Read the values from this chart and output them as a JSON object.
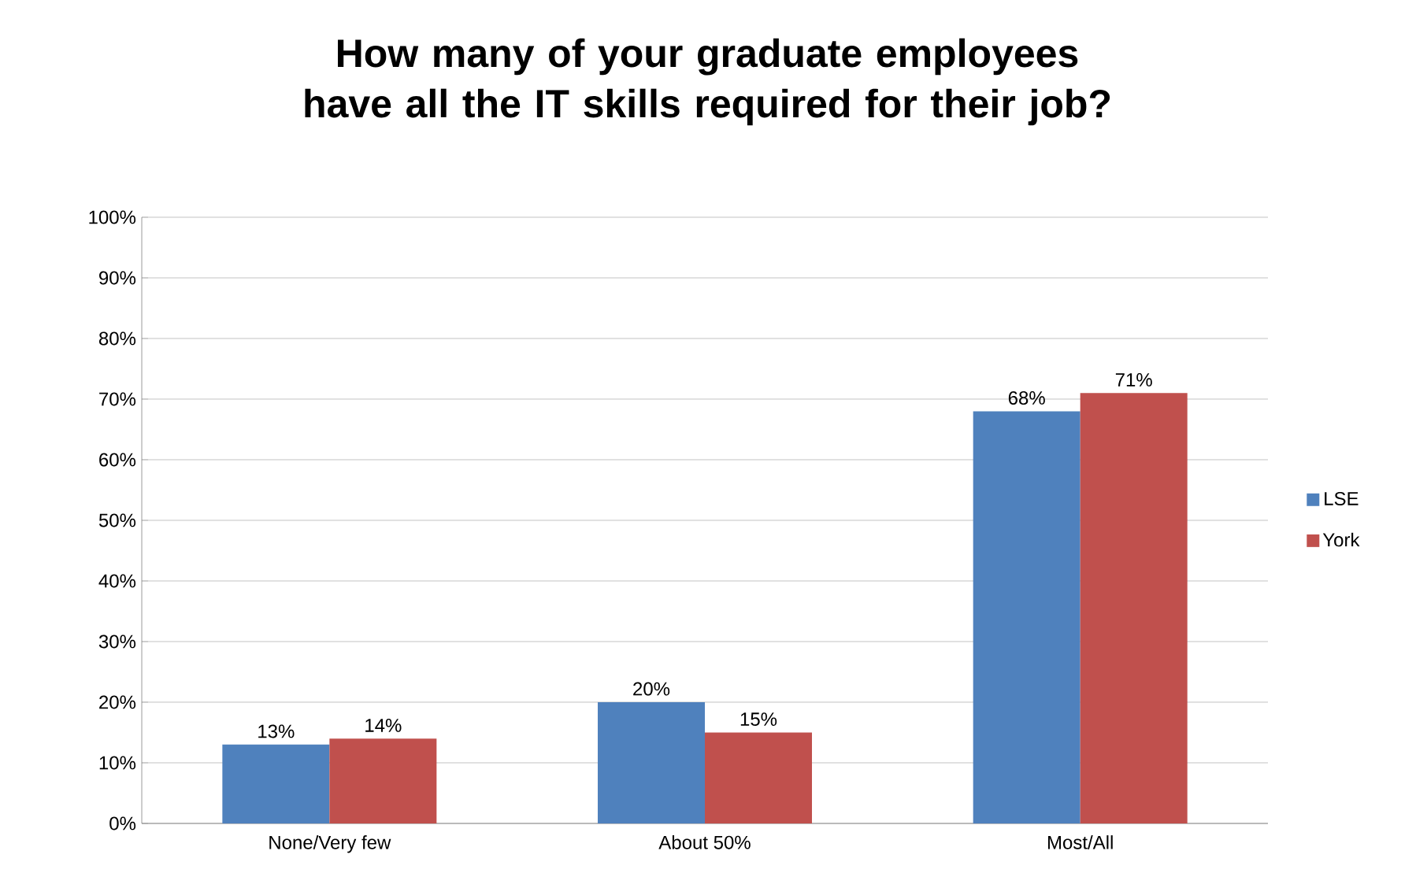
{
  "chart_data": {
    "type": "bar",
    "title": "How many of your graduate employees have all the IT skills required for their job?",
    "categories": [
      "None/Very few",
      "About 50%",
      "Most/All"
    ],
    "series": [
      {
        "name": "LSE",
        "color": "#4f81bd",
        "values": [
          13,
          20,
          68
        ],
        "value_labels": [
          "13%",
          "20%",
          "68%"
        ]
      },
      {
        "name": "York",
        "color": "#c0504d",
        "values": [
          14,
          15,
          71
        ],
        "value_labels": [
          "14%",
          "15%",
          "71%"
        ]
      }
    ],
    "ylim": [
      0,
      100
    ],
    "yticks": [
      {
        "value": 0,
        "label": "0%"
      },
      {
        "value": 10,
        "label": "10%"
      },
      {
        "value": 20,
        "label": "20%"
      },
      {
        "value": 30,
        "label": "30%"
      },
      {
        "value": 40,
        "label": "40%"
      },
      {
        "value": 50,
        "label": "50%"
      },
      {
        "value": 60,
        "label": "60%"
      },
      {
        "value": 70,
        "label": "70%"
      },
      {
        "value": 80,
        "label": "80%"
      },
      {
        "value": 90,
        "label": "90%"
      },
      {
        "value": 100,
        "label": "100%"
      }
    ],
    "grid": "y",
    "legend": "right"
  }
}
